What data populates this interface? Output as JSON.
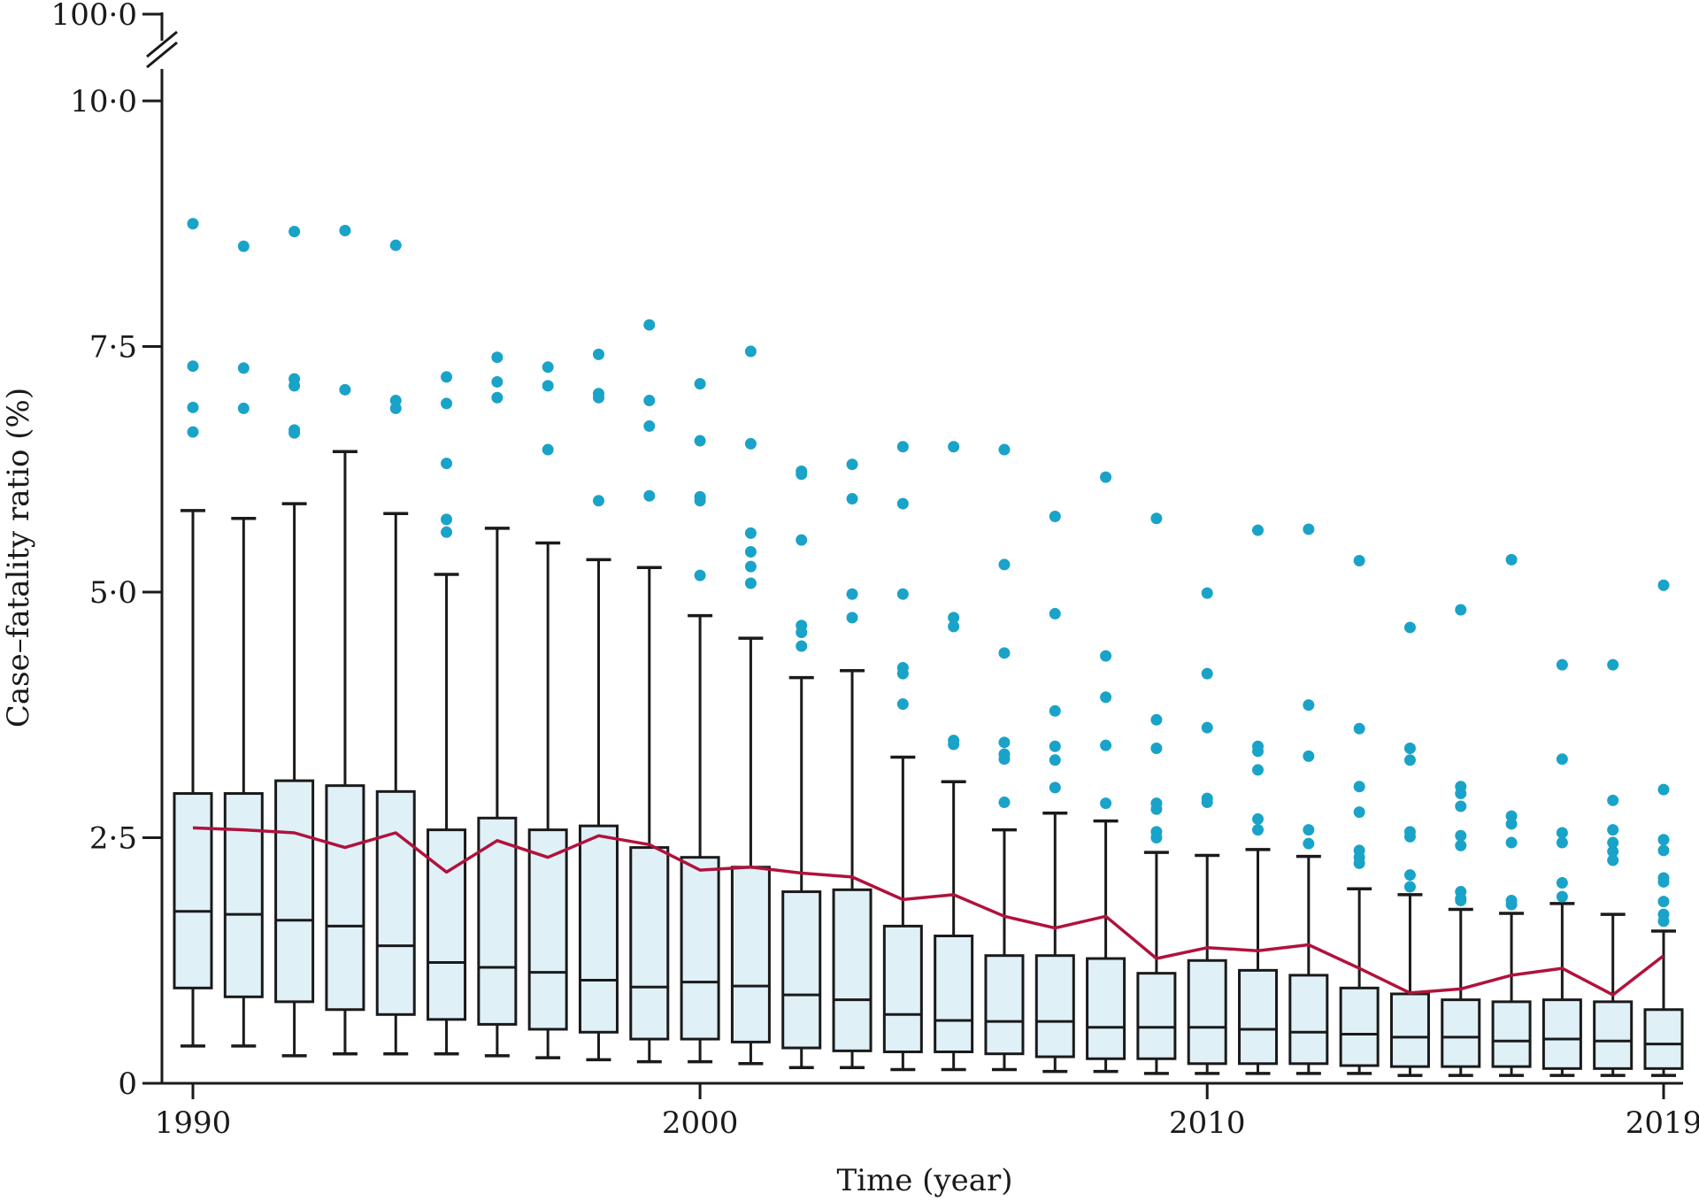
{
  "chart_data": {
    "type": "box",
    "xlabel": "Time (year)",
    "ylabel": "Case–fatality ratio (%)",
    "x_ticks": [
      "1990",
      "2000",
      "2010",
      "2019"
    ],
    "y_ticks": [
      "0",
      "2·5",
      "5·0",
      "7·5",
      "10·0",
      "100·0"
    ],
    "x_range": [
      1990,
      2019
    ],
    "y_range": [
      0,
      10
    ],
    "y_axis_break": "between 10·0 and 100·0",
    "grid": false,
    "colors": {
      "box_fill": "#dff0f7",
      "box_stroke": "#1a1a1a",
      "outlier": "#1aa3c8",
      "mean_line": "#b0123c",
      "axis": "#1a1a1a"
    },
    "boxes": [
      {
        "year": 1990,
        "lw": 0.38,
        "q1": 0.97,
        "median": 1.75,
        "q3": 2.95,
        "uw": 5.83
      },
      {
        "year": 1991,
        "lw": 0.38,
        "q1": 0.88,
        "median": 1.72,
        "q3": 2.95,
        "uw": 5.75
      },
      {
        "year": 1992,
        "lw": 0.28,
        "q1": 0.83,
        "median": 1.66,
        "q3": 3.08,
        "uw": 5.9
      },
      {
        "year": 1993,
        "lw": 0.3,
        "q1": 0.75,
        "median": 1.6,
        "q3": 3.03,
        "uw": 6.43
      },
      {
        "year": 1994,
        "lw": 0.3,
        "q1": 0.7,
        "median": 1.4,
        "q3": 2.97,
        "uw": 5.8
      },
      {
        "year": 1995,
        "lw": 0.3,
        "q1": 0.65,
        "median": 1.23,
        "q3": 2.58,
        "uw": 5.18
      },
      {
        "year": 1996,
        "lw": 0.28,
        "q1": 0.6,
        "median": 1.18,
        "q3": 2.7,
        "uw": 5.65
      },
      {
        "year": 1997,
        "lw": 0.26,
        "q1": 0.55,
        "median": 1.13,
        "q3": 2.58,
        "uw": 5.5
      },
      {
        "year": 1998,
        "lw": 0.24,
        "q1": 0.52,
        "median": 1.05,
        "q3": 2.62,
        "uw": 5.33
      },
      {
        "year": 1999,
        "lw": 0.22,
        "q1": 0.45,
        "median": 0.98,
        "q3": 2.4,
        "uw": 5.25
      },
      {
        "year": 2000,
        "lw": 0.22,
        "q1": 0.45,
        "median": 1.03,
        "q3": 2.3,
        "uw": 4.76
      },
      {
        "year": 2001,
        "lw": 0.2,
        "q1": 0.42,
        "median": 0.99,
        "q3": 2.2,
        "uw": 4.53
      },
      {
        "year": 2002,
        "lw": 0.16,
        "q1": 0.36,
        "median": 0.9,
        "q3": 1.95,
        "uw": 4.13
      },
      {
        "year": 2003,
        "lw": 0.16,
        "q1": 0.33,
        "median": 0.85,
        "q3": 1.97,
        "uw": 4.2
      },
      {
        "year": 2004,
        "lw": 0.14,
        "q1": 0.32,
        "median": 0.7,
        "q3": 1.6,
        "uw": 3.32
      },
      {
        "year": 2005,
        "lw": 0.14,
        "q1": 0.32,
        "median": 0.64,
        "q3": 1.5,
        "uw": 3.07
      },
      {
        "year": 2006,
        "lw": 0.14,
        "q1": 0.3,
        "median": 0.63,
        "q3": 1.3,
        "uw": 2.58
      },
      {
        "year": 2007,
        "lw": 0.12,
        "q1": 0.27,
        "median": 0.63,
        "q3": 1.3,
        "uw": 2.75
      },
      {
        "year": 2008,
        "lw": 0.12,
        "q1": 0.25,
        "median": 0.57,
        "q3": 1.27,
        "uw": 2.67
      },
      {
        "year": 2009,
        "lw": 0.1,
        "q1": 0.25,
        "median": 0.57,
        "q3": 1.12,
        "uw": 2.35
      },
      {
        "year": 2010,
        "lw": 0.1,
        "q1": 0.2,
        "median": 0.57,
        "q3": 1.25,
        "uw": 2.32
      },
      {
        "year": 2011,
        "lw": 0.1,
        "q1": 0.2,
        "median": 0.55,
        "q3": 1.15,
        "uw": 2.38
      },
      {
        "year": 2012,
        "lw": 0.1,
        "q1": 0.2,
        "median": 0.52,
        "q3": 1.1,
        "uw": 2.31
      },
      {
        "year": 2013,
        "lw": 0.1,
        "q1": 0.18,
        "median": 0.5,
        "q3": 0.97,
        "uw": 1.98
      },
      {
        "year": 2014,
        "lw": 0.08,
        "q1": 0.17,
        "median": 0.47,
        "q3": 0.91,
        "uw": 1.92
      },
      {
        "year": 2015,
        "lw": 0.08,
        "q1": 0.17,
        "median": 0.47,
        "q3": 0.85,
        "uw": 1.77
      },
      {
        "year": 2016,
        "lw": 0.08,
        "q1": 0.17,
        "median": 0.43,
        "q3": 0.83,
        "uw": 1.73
      },
      {
        "year": 2017,
        "lw": 0.08,
        "q1": 0.15,
        "median": 0.45,
        "q3": 0.85,
        "uw": 1.83
      },
      {
        "year": 2018,
        "lw": 0.08,
        "q1": 0.15,
        "median": 0.43,
        "q3": 0.83,
        "uw": 1.72
      },
      {
        "year": 2019,
        "lw": 0.08,
        "q1": 0.15,
        "median": 0.4,
        "q3": 0.75,
        "uw": 1.55
      }
    ],
    "mean_line": [
      [
        1990,
        2.6
      ],
      [
        1991,
        2.58
      ],
      [
        1992,
        2.55
      ],
      [
        1993,
        2.4
      ],
      [
        1994,
        2.55
      ],
      [
        1995,
        2.15
      ],
      [
        1996,
        2.47
      ],
      [
        1997,
        2.3
      ],
      [
        1998,
        2.52
      ],
      [
        1999,
        2.43
      ],
      [
        2000,
        2.17
      ],
      [
        2001,
        2.2
      ],
      [
        2002,
        2.14
      ],
      [
        2003,
        2.1
      ],
      [
        2004,
        1.87
      ],
      [
        2005,
        1.92
      ],
      [
        2006,
        1.7
      ],
      [
        2007,
        1.58
      ],
      [
        2008,
        1.7
      ],
      [
        2009,
        1.27
      ],
      [
        2010,
        1.38
      ],
      [
        2011,
        1.35
      ],
      [
        2012,
        1.41
      ],
      [
        2013,
        1.17
      ],
      [
        2014,
        0.92
      ],
      [
        2015,
        0.96
      ],
      [
        2016,
        1.1
      ],
      [
        2017,
        1.17
      ],
      [
        2018,
        0.9
      ],
      [
        2019,
        1.3
      ]
    ],
    "outliers": [
      {
        "year": 1990,
        "values": [
          8.75,
          7.3,
          6.88,
          6.63
        ]
      },
      {
        "year": 1991,
        "values": [
          8.52,
          7.28,
          6.87
        ]
      },
      {
        "year": 1992,
        "values": [
          8.67,
          7.17,
          7.1,
          6.65,
          6.62
        ]
      },
      {
        "year": 1993,
        "values": [
          8.68,
          7.06
        ]
      },
      {
        "year": 1994,
        "values": [
          8.53,
          6.95,
          6.87
        ]
      },
      {
        "year": 1995,
        "values": [
          7.19,
          6.92,
          6.31,
          5.74,
          5.61
        ]
      },
      {
        "year": 1996,
        "values": [
          7.39,
          7.14,
          6.98
        ]
      },
      {
        "year": 1997,
        "values": [
          7.29,
          7.1,
          6.45
        ]
      },
      {
        "year": 1998,
        "values": [
          7.42,
          7.02,
          6.98,
          5.93
        ]
      },
      {
        "year": 1999,
        "values": [
          7.72,
          6.95,
          6.69,
          5.98
        ]
      },
      {
        "year": 2000,
        "values": [
          7.12,
          6.54,
          5.97,
          5.93,
          5.17
        ]
      },
      {
        "year": 2001,
        "values": [
          7.45,
          6.51,
          5.6,
          5.41,
          5.26,
          5.09
        ]
      },
      {
        "year": 2002,
        "values": [
          6.23,
          6.2,
          5.53,
          4.66,
          4.59,
          4.45
        ]
      },
      {
        "year": 2003,
        "values": [
          6.3,
          5.95,
          4.98,
          4.74
        ]
      },
      {
        "year": 2004,
        "values": [
          6.48,
          5.9,
          4.98,
          4.23,
          4.17,
          3.86
        ]
      },
      {
        "year": 2005,
        "values": [
          6.48,
          4.74,
          4.65,
          3.49,
          3.45
        ]
      },
      {
        "year": 2006,
        "values": [
          6.45,
          5.28,
          4.38,
          3.47,
          3.35,
          3.3,
          2.86
        ]
      },
      {
        "year": 2007,
        "values": [
          5.77,
          4.78,
          3.79,
          3.43,
          3.29,
          3.01
        ]
      },
      {
        "year": 2008,
        "values": [
          6.17,
          4.35,
          3.93,
          3.44,
          2.85
        ]
      },
      {
        "year": 2009,
        "values": [
          5.75,
          3.7,
          3.41,
          2.85,
          2.79,
          2.56,
          2.5
        ]
      },
      {
        "year": 2010,
        "values": [
          4.99,
          4.17,
          3.62,
          2.9,
          2.86
        ]
      },
      {
        "year": 2011,
        "values": [
          5.63,
          3.43,
          3.38,
          3.19,
          2.69,
          2.58
        ]
      },
      {
        "year": 2012,
        "values": [
          5.64,
          3.85,
          3.33,
          2.58,
          2.44
        ]
      },
      {
        "year": 2013,
        "values": [
          5.32,
          3.61,
          3.02,
          2.76,
          2.37,
          2.3,
          2.24
        ]
      },
      {
        "year": 2014,
        "values": [
          4.64,
          3.41,
          3.29,
          2.56,
          2.51,
          2.12,
          2.0
        ]
      },
      {
        "year": 2015,
        "values": [
          4.82,
          3.02,
          2.95,
          2.82,
          2.52,
          2.42,
          1.95,
          1.88,
          1.86
        ]
      },
      {
        "year": 2016,
        "values": [
          5.33,
          2.72,
          2.64,
          2.45,
          1.86,
          1.82
        ]
      },
      {
        "year": 2017,
        "values": [
          4.26,
          3.3,
          2.55,
          2.45,
          2.04,
          1.9
        ]
      },
      {
        "year": 2018,
        "values": [
          4.26,
          2.88,
          2.58,
          2.45,
          2.36,
          2.27
        ]
      },
      {
        "year": 2019,
        "values": [
          5.07,
          2.99,
          2.48,
          2.37,
          2.09,
          2.05,
          1.85,
          1.72,
          1.65
        ]
      }
    ]
  }
}
